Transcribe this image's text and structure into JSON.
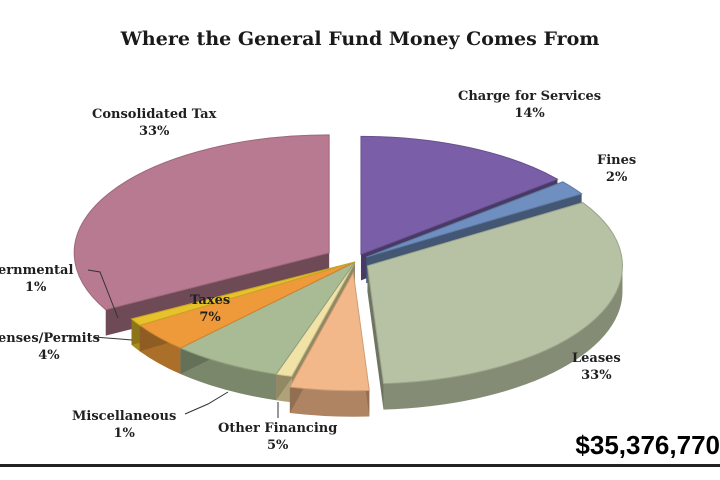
{
  "chart_data": {
    "type": "pie",
    "title": "Where the General Fund Money Comes From",
    "total_label": "$35,376,770",
    "slices": [
      {
        "name": "Consolidated Tax",
        "pct_label": "33%",
        "value": 33,
        "color": "#b87a90"
      },
      {
        "name": "Charge for Services",
        "pct_label": "14%",
        "value": 14,
        "color": "#7a5fa8"
      },
      {
        "name": "Fines",
        "pct_label": "2%",
        "value": 2,
        "color": "#6f8fc0"
      },
      {
        "name": "Leases",
        "pct_label": "33%",
        "value": 33,
        "color": "#b7c2a4"
      },
      {
        "name": "Other Financing",
        "pct_label": "5%",
        "value": 5,
        "color": "#f3b88a"
      },
      {
        "name": "Miscellaneous",
        "pct_label": "1%",
        "value": 1,
        "color": "#f1e3a6"
      },
      {
        "name": "Taxes",
        "pct_label": "7%",
        "value": 7,
        "color": "#a9bb94"
      },
      {
        "name": "Licenses/Permits",
        "pct_label": "4%",
        "value": 4,
        "color": "#ee9a3a"
      },
      {
        "name": "Intergovernmental",
        "pct_label": "1%",
        "value": 1,
        "color": "#e8c22a"
      }
    ],
    "labels": {
      "consolidated": {
        "name": "Consolidated Tax",
        "pct": "33%"
      },
      "charge": {
        "name": "Charge for Services",
        "pct": "14%"
      },
      "fines": {
        "name": "Fines",
        "pct": "2%"
      },
      "leases": {
        "name": "Leases",
        "pct": "33%"
      },
      "other": {
        "name": "Other Financing",
        "pct": "5%"
      },
      "misc": {
        "name": "Miscellaneous",
        "pct": "1%"
      },
      "taxes": {
        "name": "Taxes",
        "pct": "7%"
      },
      "licenses": {
        "name": "enses/Permits",
        "pct": "4%"
      },
      "inter": {
        "name": "ernmental",
        "pct": "1%"
      }
    }
  }
}
